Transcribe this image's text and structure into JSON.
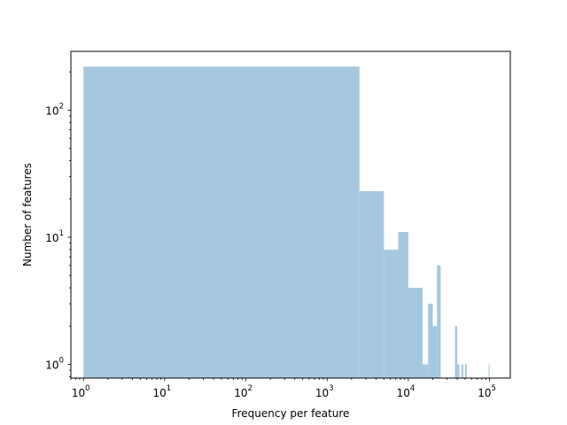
{
  "chart_data": {
    "type": "bar",
    "xlabel": "Frequency per feature",
    "ylabel": "Number of features",
    "xscale": "log",
    "yscale": "log",
    "xlim": [
      0.7,
      180000
    ],
    "ylim": [
      0.78,
      290
    ],
    "x_ticks": [
      {
        "value": 1,
        "base": "10",
        "exp": "0"
      },
      {
        "value": 10,
        "base": "10",
        "exp": "1"
      },
      {
        "value": 100,
        "base": "10",
        "exp": "2"
      },
      {
        "value": 1000,
        "base": "10",
        "exp": "3"
      },
      {
        "value": 10000,
        "base": "10",
        "exp": "4"
      },
      {
        "value": 100000,
        "base": "10",
        "exp": "5"
      }
    ],
    "y_ticks": [
      {
        "value": 1,
        "base": "10",
        "exp": "0"
      },
      {
        "value": 10,
        "base": "10",
        "exp": "1"
      },
      {
        "value": 100,
        "base": "10",
        "exp": "2"
      }
    ],
    "bar_color": "#a6c8df",
    "bins": [
      {
        "x0": 1,
        "x1": 2500,
        "count": 220
      },
      {
        "x0": 2500,
        "x1": 5000,
        "count": 23
      },
      {
        "x0": 5000,
        "x1": 7500,
        "count": 8
      },
      {
        "x0": 7500,
        "x1": 10000,
        "count": 11
      },
      {
        "x0": 10000,
        "x1": 15000,
        "count": 4
      },
      {
        "x0": 15000,
        "x1": 17500,
        "count": 1
      },
      {
        "x0": 17500,
        "x1": 20000,
        "count": 3
      },
      {
        "x0": 20000,
        "x1": 22500,
        "count": 2
      },
      {
        "x0": 22500,
        "x1": 25000,
        "count": 6
      },
      {
        "x0": 37500,
        "x1": 40000,
        "count": 2
      },
      {
        "x0": 40000,
        "x1": 42500,
        "count": 1
      },
      {
        "x0": 45000,
        "x1": 47500,
        "count": 1
      },
      {
        "x0": 50000,
        "x1": 52500,
        "count": 1
      },
      {
        "x0": 97500,
        "x1": 100000,
        "count": 1
      }
    ]
  }
}
